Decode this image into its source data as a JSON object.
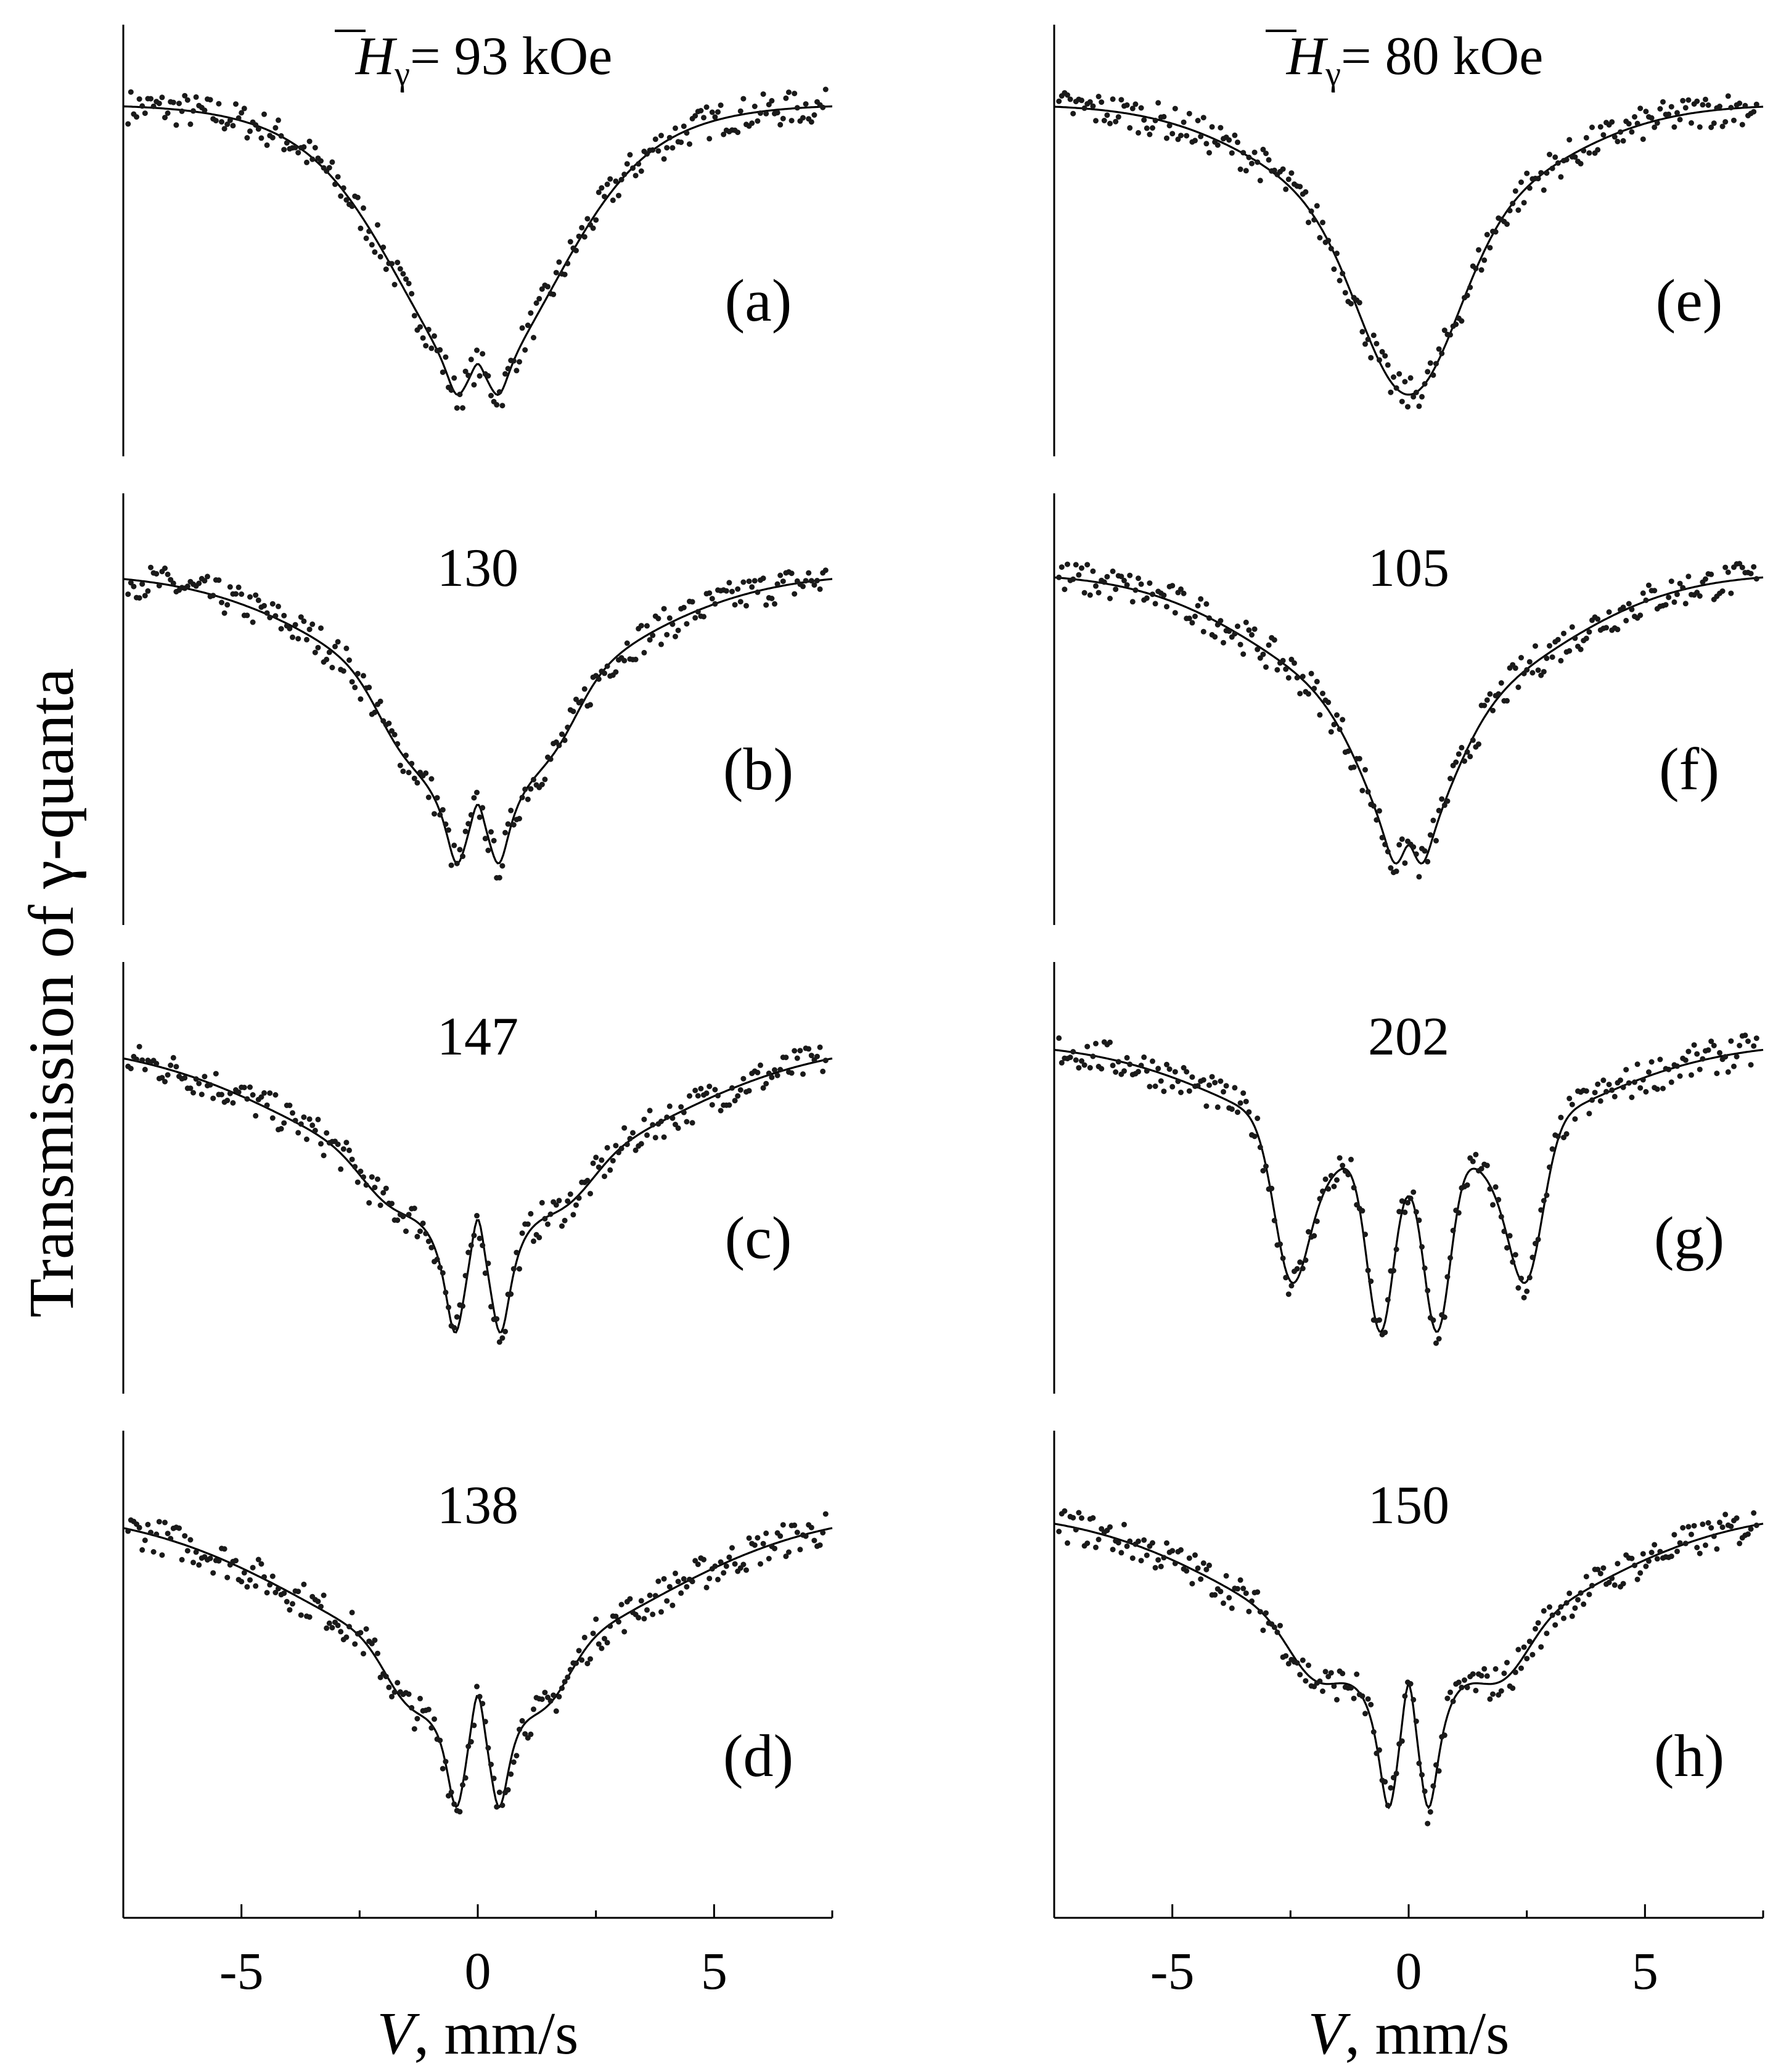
{
  "figure": {
    "ylabel": "Transmission of γ-quanta",
    "xlabel_var": "V",
    "xlabel_unit": ", mm/s",
    "line_color": "#000000",
    "point_color": "#1a1a1a"
  },
  "chart_data": [
    {
      "type": "line",
      "panel": "a",
      "label": "(a)",
      "field_value": "93",
      "field_prefix": "H",
      "field_sub": "γ",
      "field_unit": "kOe",
      "xlim": [
        -7.5,
        7.5
      ],
      "xticks": [
        -5,
        0,
        5
      ],
      "column": 0,
      "row": 0,
      "fit_description": "Mössbauer spectrum; baseline ≈ 1, broad dip to ≈ 0.12 at V≈0 with small split centered at 0",
      "spectrum": {
        "width": 1.6,
        "depth": 0.55,
        "broad_width": 2.6,
        "broad_depth": 0.3,
        "split": 0.45,
        "split_depth": 0.12,
        "lines": []
      }
    },
    {
      "type": "line",
      "panel": "b",
      "label": "(b)",
      "field_value": "130",
      "xlim": [
        -7.5,
        7.5
      ],
      "xticks": [
        -5,
        0,
        5
      ],
      "column": 0,
      "row": 1,
      "fit_description": "broad absorption with shoulders at ≈ ±1.5 mm/s and split center",
      "spectrum": {
        "width": 1.2,
        "depth": 0.35,
        "broad_width": 3.0,
        "broad_depth": 0.38,
        "split": 0.45,
        "split_depth": 0.2,
        "lines": [
          [
            -1.7,
            0.5,
            0.08
          ],
          [
            1.7,
            0.5,
            0.08
          ]
        ]
      }
    },
    {
      "type": "line",
      "panel": "c",
      "label": "(c)",
      "field_value": "147",
      "xlim": [
        -7.5,
        7.5
      ],
      "xticks": [
        -5,
        0,
        5
      ],
      "column": 0,
      "row": 2,
      "fit_description": "broad absorption with doublet at ≈ ±0.45 mm/s",
      "spectrum": {
        "width": 0.9,
        "depth": 0.15,
        "broad_width": 3.6,
        "broad_depth": 0.45,
        "split": 0.48,
        "split_depth": 0.35,
        "lines": [
          [
            -1.9,
            0.6,
            0.1
          ],
          [
            1.9,
            0.6,
            0.1
          ]
        ]
      }
    },
    {
      "type": "line",
      "panel": "d",
      "label": "(d)",
      "field_value": "138",
      "xlim": [
        -7.5,
        7.5
      ],
      "xticks": [
        -5,
        0,
        5
      ],
      "column": 0,
      "row": 3,
      "fit_description": "broad absorption with doublet at ≈ ±0.45 mm/s",
      "spectrum": {
        "width": 0.9,
        "depth": 0.12,
        "broad_width": 3.6,
        "broad_depth": 0.45,
        "split": 0.45,
        "split_depth": 0.33,
        "lines": [
          [
            -1.5,
            0.5,
            0.12
          ],
          [
            1.5,
            0.5,
            0.12
          ]
        ]
      }
    },
    {
      "type": "line",
      "panel": "e",
      "label": "(e)",
      "field_value": "80",
      "field_prefix": "H",
      "field_sub": "γ",
      "field_unit": "kOe",
      "xlim": [
        -7.5,
        7.5
      ],
      "xticks": [
        -5,
        0,
        5
      ],
      "column": 1,
      "row": 0,
      "fit_description": "single sharp dip at V≈0",
      "spectrum": {
        "width": 1.0,
        "depth": 0.5,
        "broad_width": 2.6,
        "broad_depth": 0.35,
        "split": 0,
        "split_depth": 0,
        "lines": []
      }
    },
    {
      "type": "line",
      "panel": "f",
      "label": "(f)",
      "field_value": "105",
      "xlim": [
        -7.5,
        7.5
      ],
      "xticks": [
        -5,
        0,
        5
      ],
      "column": 1,
      "row": 1,
      "fit_description": "broad absorption with split center",
      "spectrum": {
        "width": 0.9,
        "depth": 0.4,
        "broad_width": 2.8,
        "broad_depth": 0.45,
        "split": 0.3,
        "split_depth": 0.12,
        "lines": []
      }
    },
    {
      "type": "line",
      "panel": "g",
      "label": "(g)",
      "field_value": "202",
      "xlim": [
        -7.5,
        7.5
      ],
      "xticks": [
        -5,
        0,
        5
      ],
      "column": 1,
      "row": 2,
      "fit_description": "resolved sextet-like structure: lines at ≈ -2.5, -0.6, 0.6, 2.5 mm/s",
      "spectrum": {
        "width": 0,
        "depth": 0,
        "broad_width": 3.2,
        "broad_depth": 0.38,
        "split": 0,
        "split_depth": 0,
        "lines": [
          [
            -2.5,
            0.35,
            0.45
          ],
          [
            -1.9,
            0.4,
            0.1
          ],
          [
            -0.6,
            0.28,
            0.55
          ],
          [
            0.6,
            0.28,
            0.55
          ],
          [
            1.9,
            0.4,
            0.1
          ],
          [
            2.5,
            0.35,
            0.45
          ]
        ]
      }
    },
    {
      "type": "line",
      "panel": "h",
      "label": "(h)",
      "field_value": "150",
      "xlim": [
        -7.5,
        7.5
      ],
      "xticks": [
        -5,
        0,
        5
      ],
      "column": 1,
      "row": 3,
      "fit_description": "broad absorption with flat shoulders and doublet at ≈ ±0.4 mm/s",
      "spectrum": {
        "width": 0.8,
        "depth": 0.1,
        "broad_width": 3.4,
        "broad_depth": 0.5,
        "split": 0.42,
        "split_depth": 0.45,
        "lines": [
          [
            -2.0,
            0.55,
            0.15
          ],
          [
            2.0,
            0.55,
            0.15
          ]
        ]
      }
    }
  ]
}
